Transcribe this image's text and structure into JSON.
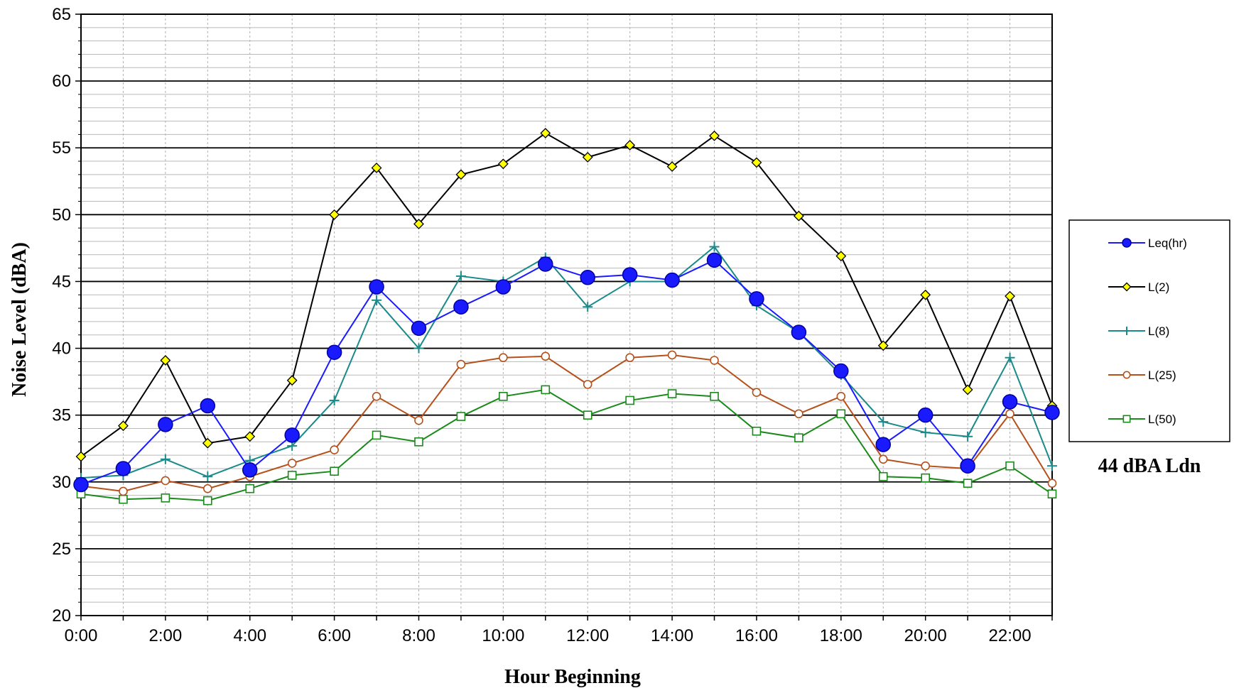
{
  "chart_data": {
    "type": "line",
    "title": "",
    "xlabel": "Hour Beginning",
    "ylabel": "Noise Level (dBA)",
    "ylim": [
      20,
      65
    ],
    "yticks": [
      "20",
      "25",
      "30",
      "35",
      "40",
      "45",
      "50",
      "55",
      "60",
      "65"
    ],
    "x": [
      0,
      1,
      2,
      3,
      4,
      5,
      6,
      7,
      8,
      9,
      10,
      11,
      12,
      13,
      14,
      15,
      16,
      17,
      18,
      19,
      20,
      21,
      22,
      23
    ],
    "xtick_labels": [
      "0:00",
      "2:00",
      "4:00",
      "6:00",
      "8:00",
      "10:00",
      "12:00",
      "14:00",
      "16:00",
      "18:00",
      "20:00",
      "22:00"
    ],
    "grid": true,
    "legend_position": "right",
    "annotation": "44 dBA Ldn",
    "series": [
      {
        "name": "Leq(hr)",
        "color": "#1a1aff",
        "marker": "circle",
        "values": [
          29.8,
          31.0,
          34.3,
          35.7,
          30.9,
          33.5,
          39.7,
          44.6,
          41.5,
          43.1,
          44.6,
          46.3,
          45.3,
          45.5,
          45.1,
          46.6,
          43.7,
          41.2,
          38.3,
          32.8,
          35.0,
          31.2,
          36.0,
          35.2
        ]
      },
      {
        "name": "L(2)",
        "color": "#000000",
        "marker": "diamond",
        "values": [
          31.9,
          34.2,
          39.1,
          32.9,
          33.4,
          37.6,
          50.0,
          53.5,
          49.3,
          53.0,
          53.8,
          56.1,
          54.3,
          55.2,
          53.6,
          55.9,
          53.9,
          49.9,
          46.9,
          40.2,
          44.0,
          36.9,
          43.9,
          35.7
        ]
      },
      {
        "name": "L(8)",
        "color": "#1a8a8a",
        "marker": "plus",
        "values": [
          30.3,
          30.5,
          31.7,
          30.4,
          31.6,
          32.7,
          36.1,
          43.6,
          40.0,
          45.4,
          45.0,
          46.8,
          43.1,
          45.0,
          45.0,
          47.6,
          43.2,
          41.2,
          38.0,
          34.5,
          33.7,
          33.4,
          39.3,
          31.2
        ]
      },
      {
        "name": "L(25)",
        "color": "#b5501a",
        "marker": "circle-open",
        "values": [
          29.7,
          29.3,
          30.1,
          29.5,
          30.4,
          31.4,
          32.4,
          36.4,
          34.6,
          38.8,
          39.3,
          39.4,
          37.3,
          39.3,
          39.5,
          39.1,
          36.7,
          35.1,
          36.4,
          31.7,
          31.2,
          31.0,
          35.1,
          29.9
        ]
      },
      {
        "name": "L(50)",
        "color": "#1a8a1a",
        "marker": "square-open",
        "values": [
          29.1,
          28.7,
          28.8,
          28.6,
          29.5,
          30.5,
          30.8,
          33.5,
          33.0,
          34.9,
          36.4,
          36.9,
          35.0,
          36.1,
          36.6,
          36.4,
          33.8,
          33.3,
          35.1,
          30.4,
          30.3,
          29.9,
          31.2,
          29.1
        ]
      }
    ]
  }
}
